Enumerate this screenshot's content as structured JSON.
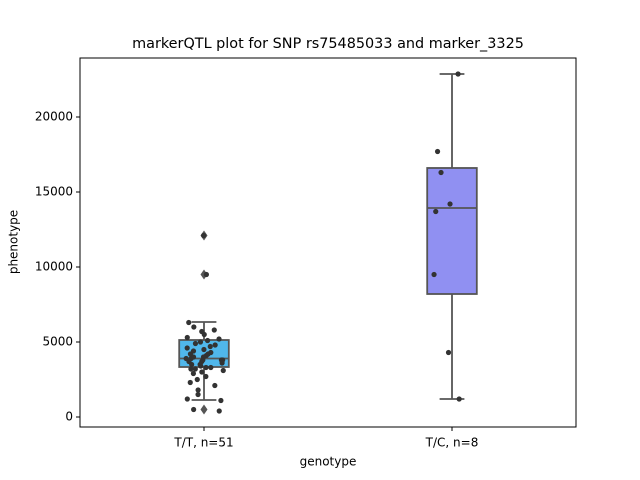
{
  "chart_data": {
    "type": "box",
    "title": "markerQTL plot for SNP rs75485033 and marker_3325",
    "x_label": "genotype",
    "y_label": "phenotype",
    "categories": [
      "T/T, n=51",
      "T/C, n=8"
    ],
    "colors": [
      "#50b7eb",
      "#9090f2"
    ],
    "boxes": [
      {
        "whislo": 1133,
        "q1": 3333,
        "median": 3900,
        "q3": 5133,
        "whishi": 6333,
        "fliers": [
          12100,
          9500,
          500
        ]
      },
      {
        "whislo": 1200,
        "q1": 8200,
        "median": 13933,
        "q3": 16600,
        "whishi": 22867,
        "fliers": []
      }
    ],
    "points": [
      [
        12100,
        9500,
        6300,
        6000,
        5700,
        5500,
        5300,
        5200,
        5100,
        5000,
        4900,
        4800,
        4700,
        4600,
        4500,
        4400,
        4300,
        4200,
        4100,
        4000,
        3900,
        3900,
        3800,
        3800,
        3700,
        3700,
        3600,
        3500,
        3400,
        3300,
        3300,
        3200,
        3200,
        3100,
        3000,
        2900,
        2700,
        2500,
        2300,
        2100,
        1800,
        1500,
        1200,
        1100,
        500,
        400,
        3800,
        4000,
        4200,
        3500,
        5800
      ],
      [
        22867,
        17700,
        16300,
        14200,
        13700,
        9500,
        4300,
        1200
      ]
    ],
    "ylim": [
      -667,
      23933
    ],
    "yticks": [
      0,
      5000,
      10000,
      15000,
      20000
    ]
  }
}
